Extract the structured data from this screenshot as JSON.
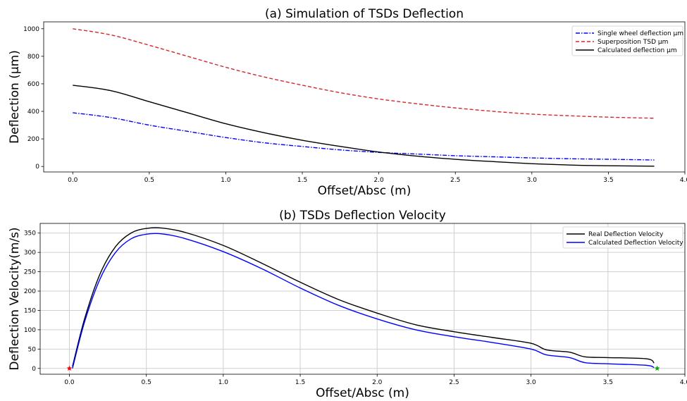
{
  "chart_data": [
    {
      "type": "line",
      "title": "(a) Simulation of TSDs Deflection",
      "xlabel": "Offset/Absc (m)",
      "ylabel": "Deflection (µm)",
      "xlim": [
        -0.19,
        4.0
      ],
      "ylim": [
        -40,
        1050
      ],
      "xticks": [
        "0.0",
        "0.5",
        "1.0",
        "1.5",
        "2.0",
        "2.5",
        "3.0",
        "3.5",
        "4.0"
      ],
      "yticks": [
        "0",
        "200",
        "400",
        "600",
        "800",
        "1000"
      ],
      "grid": false,
      "legend": "top-right",
      "x": [
        0.0,
        0.25,
        0.5,
        0.75,
        1.0,
        1.25,
        1.5,
        1.75,
        2.0,
        2.25,
        2.5,
        2.75,
        3.0,
        3.25,
        3.5,
        3.8
      ],
      "series": [
        {
          "name": "Single wheel deflection  µm",
          "color": "#0000ff",
          "dash": "dashdot",
          "values": [
            390,
            355,
            300,
            255,
            210,
            172,
            145,
            120,
            102,
            90,
            78,
            70,
            62,
            56,
            52,
            47
          ]
        },
        {
          "name": "Superposition TSD µm",
          "color": "#d62728",
          "dash": "dashed",
          "values": [
            1000,
            955,
            880,
            800,
            720,
            650,
            590,
            535,
            490,
            455,
            425,
            400,
            380,
            368,
            358,
            350
          ]
        },
        {
          "name": "Calculated deflection µm",
          "color": "#000000",
          "dash": "solid",
          "values": [
            590,
            550,
            470,
            390,
            310,
            245,
            190,
            145,
            105,
            75,
            52,
            35,
            20,
            10,
            5,
            2
          ]
        }
      ]
    },
    {
      "type": "line",
      "title": "(b) TSDs Deflection Velocity",
      "xlabel": "Offset/Absc (m)",
      "ylabel": "Deflection Velocity(m/s)",
      "xlim": [
        -0.19,
        4.0
      ],
      "ylim": [
        -15,
        375
      ],
      "xticks": [
        "0.0",
        "0.5",
        "1.0",
        "1.5",
        "2.0",
        "2.5",
        "3.0",
        "3.5",
        "4.0"
      ],
      "yticks": [
        "0",
        "50",
        "100",
        "150",
        "200",
        "250",
        "300",
        "350"
      ],
      "grid": true,
      "legend": "top-right",
      "x": [
        0.02,
        0.1,
        0.2,
        0.3,
        0.4,
        0.5,
        0.6,
        0.75,
        1.0,
        1.25,
        1.5,
        1.75,
        2.0,
        2.25,
        2.5,
        2.75,
        3.0,
        3.1,
        3.25,
        3.35,
        3.5,
        3.75,
        3.8
      ],
      "series": [
        {
          "name": "Real Deflection Velocity",
          "color": "#000000",
          "values": [
            5,
            130,
            245,
            315,
            350,
            362,
            363,
            352,
            318,
            272,
            223,
            178,
            143,
            113,
            95,
            80,
            65,
            48,
            42,
            30,
            28,
            25,
            14
          ]
        },
        {
          "name": "Calculated Deflection Velocity",
          "color": "#0000ff",
          "values": [
            0,
            122,
            232,
            300,
            335,
            347,
            348,
            336,
            302,
            258,
            208,
            163,
            128,
            100,
            82,
            67,
            50,
            35,
            28,
            15,
            12,
            8,
            2
          ]
        }
      ],
      "markers": [
        {
          "x": 0.0,
          "y": 0,
          "color": "#ff0000",
          "shape": "star"
        },
        {
          "x": 3.82,
          "y": 0,
          "color": "#00aa00",
          "shape": "star"
        }
      ]
    }
  ]
}
